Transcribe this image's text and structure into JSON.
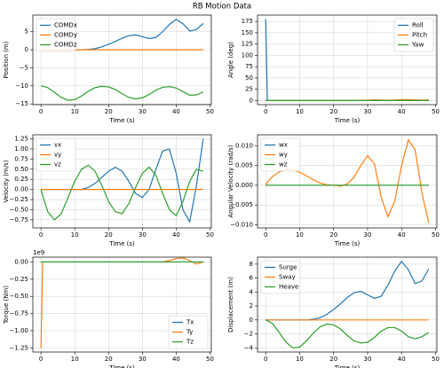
{
  "title": "RB Motion Data",
  "chart_data": [
    {
      "type": "line",
      "xlabel": "Time (s)",
      "ylabel": "Position (m)",
      "x": [
        0,
        0.5,
        2,
        4,
        6,
        8,
        10,
        12,
        14,
        16,
        18,
        20,
        22,
        24,
        26,
        28,
        30,
        32,
        34,
        36,
        38,
        40,
        42,
        44,
        46,
        48
      ],
      "series": [
        {
          "name": "COMDx",
          "color": "#1f77b4",
          "values": [
            0,
            0,
            0,
            0,
            0,
            0,
            0,
            0,
            0.1,
            0.3,
            0.8,
            1.5,
            2.3,
            3.2,
            3.9,
            4.1,
            3.6,
            3.1,
            3.4,
            5.0,
            7.0,
            8.4,
            7.2,
            5.2,
            5.6,
            7.3
          ]
        },
        {
          "name": "COMDy",
          "color": "#ff7f0e",
          "values": [
            0,
            0,
            0,
            0,
            0,
            0,
            0,
            0,
            0,
            0,
            0,
            0,
            0,
            0,
            0,
            0,
            0,
            0,
            0,
            0,
            0,
            0,
            0,
            0,
            0,
            0
          ]
        },
        {
          "name": "COMDz",
          "color": "#2ca02c",
          "values": [
            -10,
            -10.1,
            -10.5,
            -11.8,
            -13.2,
            -14,
            -13.8,
            -12.8,
            -11.5,
            -10.5,
            -10.1,
            -10.3,
            -11,
            -12.2,
            -13.2,
            -13.6,
            -13.3,
            -12.4,
            -11.2,
            -10.4,
            -10.2,
            -10.6,
            -11.6,
            -12.6,
            -12.5,
            -11.7
          ]
        }
      ],
      "xlim": [
        -2.4,
        50.4
      ],
      "xticks": [
        0,
        10,
        20,
        30,
        40,
        50
      ],
      "ylim": [
        -15.2,
        9.6
      ],
      "yticks": [
        {
          "value": -15,
          "label": "−15"
        },
        {
          "value": -10,
          "label": "−10"
        },
        {
          "value": -5,
          "label": "−5"
        },
        0,
        5
      ],
      "grid": true,
      "legend": "upper-left"
    },
    {
      "type": "line",
      "xlabel": "Time (s)",
      "ylabel": "Angle (deg)",
      "x": [
        0,
        0.5,
        2,
        4,
        6,
        8,
        10,
        12,
        14,
        16,
        18,
        20,
        22,
        24,
        26,
        28,
        30,
        32,
        34,
        36,
        38,
        40,
        42,
        44,
        46,
        48
      ],
      "series": [
        {
          "name": "Roll",
          "color": "#1f77b4",
          "values": [
            180,
            0,
            0,
            0,
            0,
            0,
            0,
            0,
            0,
            0,
            0,
            0,
            0,
            0,
            0,
            0,
            0,
            0,
            0,
            0,
            0,
            0,
            0,
            0,
            0,
            0
          ]
        },
        {
          "name": "Pitch",
          "color": "#ff7f0e",
          "values": [
            0,
            0,
            0,
            0,
            0,
            0,
            0,
            0,
            0,
            0,
            0,
            0,
            0,
            0,
            0,
            0.3,
            0.8,
            1.5,
            1.2,
            0.6,
            1.2,
            2.0,
            2.2,
            1.5,
            0.8,
            1.4
          ]
        },
        {
          "name": "Yaw",
          "color": "#2ca02c",
          "values": [
            0,
            0,
            0,
            0,
            0,
            0,
            0,
            0,
            0,
            0,
            0,
            0,
            0,
            0,
            0,
            0,
            0,
            0.3,
            0.3,
            0,
            0,
            0.3,
            0.3,
            0,
            0,
            0
          ]
        }
      ],
      "xlim": [
        -2.4,
        50.4
      ],
      "xticks": [
        0,
        10,
        20,
        30,
        40,
        50
      ],
      "ylim": [
        -9,
        189
      ],
      "yticks": [
        0,
        25,
        50,
        75,
        100,
        125,
        150,
        175
      ],
      "grid": true,
      "legend": "upper-right"
    },
    {
      "type": "line",
      "xlabel": "Time (s)",
      "ylabel": "Velocity (m/s)",
      "x": [
        0,
        0.5,
        2,
        4,
        6,
        8,
        10,
        12,
        14,
        16,
        18,
        20,
        22,
        24,
        26,
        28,
        30,
        32,
        34,
        36,
        38,
        40,
        42,
        44,
        46,
        48
      ],
      "series": [
        {
          "name": "vx",
          "color": "#1f77b4",
          "values": [
            0,
            0,
            0,
            0,
            0,
            0,
            0,
            0,
            0.05,
            0.15,
            0.3,
            0.45,
            0.55,
            0.45,
            0.2,
            -0.1,
            -0.2,
            0.0,
            0.5,
            0.95,
            1.0,
            0.4,
            -0.5,
            -0.8,
            0.1,
            1.25
          ]
        },
        {
          "name": "vy",
          "color": "#ff7f0e",
          "values": [
            0,
            0,
            0,
            0,
            0,
            0,
            0,
            0,
            0,
            0,
            0,
            0,
            0,
            0,
            0,
            0,
            0,
            0,
            0,
            0,
            0,
            0,
            0,
            0,
            0,
            0
          ]
        },
        {
          "name": "vz",
          "color": "#2ca02c",
          "values": [
            0,
            -0.15,
            -0.55,
            -0.75,
            -0.6,
            -0.2,
            0.2,
            0.5,
            0.6,
            0.45,
            0.1,
            -0.3,
            -0.55,
            -0.6,
            -0.35,
            0.05,
            0.4,
            0.55,
            0.35,
            -0.1,
            -0.5,
            -0.65,
            -0.3,
            0.2,
            0.5,
            0.45
          ]
        }
      ],
      "xlim": [
        -2.4,
        50.4
      ],
      "xticks": [
        0,
        10,
        20,
        30,
        40,
        50
      ],
      "ylim": [
        -0.95,
        1.35
      ],
      "yticks": [
        {
          "value": -0.75,
          "label": "−0.75"
        },
        {
          "value": -0.5,
          "label": "−0.50"
        },
        {
          "value": -0.25,
          "label": "−0.25"
        },
        {
          "value": 0,
          "label": "0.00"
        },
        {
          "value": 0.25,
          "label": "0.25"
        },
        {
          "value": 0.5,
          "label": "0.50"
        },
        {
          "value": 0.75,
          "label": "0.75"
        },
        {
          "value": 1,
          "label": "1.00"
        },
        {
          "value": 1.25,
          "label": "1.25"
        }
      ],
      "grid": true,
      "legend": "upper-left"
    },
    {
      "type": "line",
      "xlabel": "Time (s)",
      "ylabel": "Angular Velocity (rad/s)",
      "x": [
        0,
        0.5,
        2,
        4,
        6,
        8,
        10,
        12,
        14,
        16,
        18,
        20,
        22,
        24,
        26,
        28,
        30,
        32,
        34,
        36,
        38,
        40,
        42,
        44,
        46,
        48
      ],
      "series": [
        {
          "name": "wx",
          "color": "#1f77b4",
          "values": [
            0,
            0,
            0,
            0,
            0,
            0,
            0,
            0,
            0,
            0,
            0,
            0,
            0,
            0,
            0,
            0,
            0,
            0,
            0,
            0,
            0,
            0,
            0,
            0,
            0,
            0
          ]
        },
        {
          "name": "wy",
          "color": "#ff7f0e",
          "values": [
            0,
            0.0008,
            0.0022,
            0.0034,
            0.004,
            0.0039,
            0.0033,
            0.0024,
            0.0014,
            0.0006,
            0.0001,
            0,
            -0.0002,
            0.0003,
            0.002,
            0.005,
            0.0075,
            0.0055,
            -0.003,
            -0.008,
            -0.004,
            0.005,
            0.0115,
            0.009,
            -0.002,
            -0.0095
          ]
        },
        {
          "name": "wz",
          "color": "#2ca02c",
          "values": [
            0,
            0,
            0,
            0,
            0,
            0,
            0,
            0,
            0,
            0,
            0,
            0,
            0,
            0,
            0,
            0,
            0,
            0,
            0,
            0,
            0,
            0,
            0,
            0,
            0,
            0
          ]
        }
      ],
      "xlim": [
        -2.4,
        50.4
      ],
      "xticks": [
        0,
        10,
        20,
        30,
        40,
        50
      ],
      "ylim": [
        -0.0108,
        0.0128
      ],
      "yticks": [
        {
          "value": -0.01,
          "label": "−0.010"
        },
        {
          "value": -0.005,
          "label": "−0.005"
        },
        {
          "value": 0,
          "label": "0.000"
        },
        {
          "value": 0.005,
          "label": "0.005"
        },
        {
          "value": 0.01,
          "label": "0.010"
        }
      ],
      "grid": true,
      "legend": "upper-left"
    },
    {
      "type": "line",
      "xlabel": "Time (s)",
      "ylabel": "Torque (Nm)",
      "y_offset_label": "1e9",
      "x": [
        0,
        0.5,
        2,
        4,
        6,
        8,
        10,
        12,
        14,
        16,
        18,
        20,
        22,
        24,
        26,
        28,
        30,
        32,
        34,
        36,
        38,
        40,
        42,
        44,
        46,
        48
      ],
      "series": [
        {
          "name": "Tx",
          "color": "#1f77b4",
          "values": [
            0,
            0,
            0,
            0,
            0,
            0,
            0,
            0,
            0,
            0,
            0,
            0,
            0,
            0,
            0,
            0,
            0,
            0,
            0,
            0,
            0,
            0,
            0,
            0,
            0,
            0
          ]
        },
        {
          "name": "Ty",
          "color": "#ff7f0e",
          "values": [
            -1.25,
            0,
            0,
            0,
            0,
            0,
            0,
            0,
            0,
            0,
            0,
            0,
            0,
            0,
            0,
            0,
            0,
            0,
            0,
            0,
            0.02,
            0.05,
            0.06,
            0.02,
            -0.03,
            0
          ]
        },
        {
          "name": "Tz",
          "color": "#2ca02c",
          "values": [
            0,
            0,
            0,
            0,
            0,
            0,
            0,
            0,
            0,
            0,
            0,
            0,
            0,
            0,
            0,
            0,
            0,
            0,
            0,
            0,
            0,
            0,
            0,
            0,
            0,
            0
          ]
        }
      ],
      "xlim": [
        -2.4,
        50.4
      ],
      "xticks": [
        0,
        10,
        20,
        30,
        40,
        50
      ],
      "ylim": [
        -1.31,
        0.07
      ],
      "yticks": [
        {
          "value": -1.25,
          "label": "−1.25"
        },
        {
          "value": -1,
          "label": "−1.00"
        },
        {
          "value": -0.75,
          "label": "−0.75"
        },
        {
          "value": -0.5,
          "label": "−0.50"
        },
        {
          "value": -0.25,
          "label": "−0.25"
        },
        {
          "value": 0,
          "label": "0.00"
        }
      ],
      "grid": true,
      "legend": "lower-right"
    },
    {
      "type": "line",
      "xlabel": "Time (s)",
      "ylabel": "Displacement (m)",
      "x": [
        0,
        0.5,
        2,
        4,
        6,
        8,
        10,
        12,
        14,
        16,
        18,
        20,
        22,
        24,
        26,
        28,
        30,
        32,
        34,
        36,
        38,
        40,
        42,
        44,
        46,
        48
      ],
      "series": [
        {
          "name": "Surge",
          "color": "#1f77b4",
          "values": [
            0,
            0,
            0,
            0,
            0,
            0,
            0,
            0,
            0.1,
            0.3,
            0.8,
            1.5,
            2.3,
            3.2,
            3.9,
            4.1,
            3.6,
            3.1,
            3.4,
            5.0,
            7.0,
            8.4,
            7.2,
            5.2,
            5.6,
            7.3
          ]
        },
        {
          "name": "Sway",
          "color": "#ff7f0e",
          "values": [
            0,
            0,
            0,
            0,
            0,
            0,
            0,
            0,
            0,
            0,
            0,
            0,
            0,
            0,
            0,
            0,
            0,
            0,
            0,
            0,
            0,
            0,
            0,
            0,
            0,
            0
          ]
        },
        {
          "name": "Heave",
          "color": "#2ca02c",
          "values": [
            0,
            -0.1,
            -0.5,
            -1.8,
            -3.2,
            -4.0,
            -3.9,
            -3.0,
            -1.9,
            -1.0,
            -0.6,
            -0.7,
            -1.3,
            -2.2,
            -3.0,
            -3.3,
            -3.2,
            -2.5,
            -1.6,
            -1.1,
            -1.1,
            -1.6,
            -2.4,
            -2.7,
            -2.4,
            -1.8
          ]
        }
      ],
      "xlim": [
        -2.4,
        50.4
      ],
      "xticks": [
        0,
        10,
        20,
        30,
        40,
        50
      ],
      "ylim": [
        -4.6,
        9.0
      ],
      "yticks": [
        {
          "value": -4,
          "label": "−4"
        },
        {
          "value": -2,
          "label": "−2"
        },
        0,
        2,
        4,
        6,
        8
      ],
      "grid": true,
      "legend": "upper-left"
    }
  ]
}
